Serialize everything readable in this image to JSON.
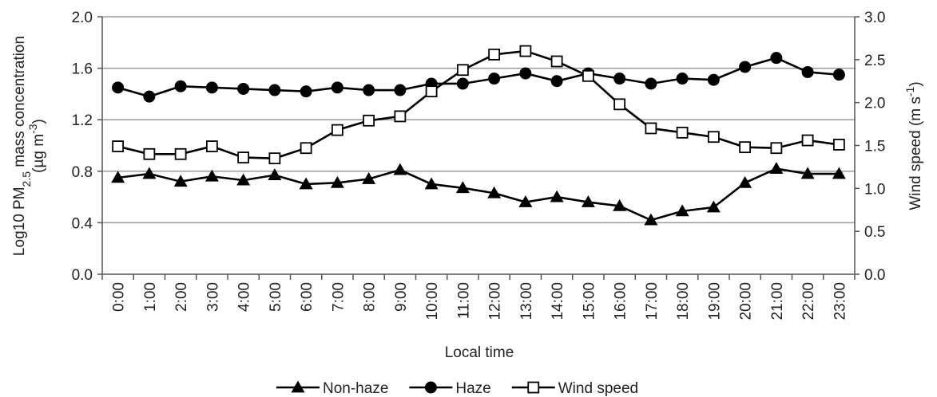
{
  "chart_data": {
    "type": "line",
    "x": [
      "0:00",
      "1:00",
      "2:00",
      "3:00",
      "4:00",
      "5:00",
      "6:00",
      "7:00",
      "8:00",
      "9:00",
      "10:00",
      "11:00",
      "12:00",
      "13:00",
      "14:00",
      "15:00",
      "16:00",
      "17:00",
      "18:00",
      "19:00",
      "20:00",
      "21:00",
      "22:00",
      "23:00"
    ],
    "xlabel": "Local time",
    "ylabel_left_prefix": "Log10 PM",
    "ylabel_left_sub": "2.5",
    "ylabel_left_suffix": " mass concentration",
    "ylabel_left_unit_prefix": "(µg m",
    "ylabel_left_unit_sup": "-3",
    "ylabel_left_unit_suffix": ")",
    "ylabel_right_prefix": "Wind speed (m s",
    "ylabel_right_sup": "-1",
    "ylabel_right_suffix": ")",
    "ylim_left": [
      0.0,
      2.0
    ],
    "yticks_left": [
      "0.0",
      "0.4",
      "0.8",
      "1.2",
      "1.6",
      "2.0"
    ],
    "ylim_right": [
      0.0,
      3.0
    ],
    "yticks_right": [
      "0.0",
      "0.5",
      "1.0",
      "1.5",
      "2.0",
      "2.5",
      "3.0"
    ],
    "grid": "horizontal",
    "legend_position": "bottom",
    "series": [
      {
        "name": "Non-haze",
        "axis": "left",
        "marker": "triangle",
        "values": [
          0.75,
          0.78,
          0.72,
          0.76,
          0.73,
          0.77,
          0.7,
          0.71,
          0.74,
          0.81,
          0.7,
          0.67,
          0.63,
          0.56,
          0.6,
          0.56,
          0.53,
          0.42,
          0.49,
          0.52,
          0.71,
          0.82,
          0.78,
          0.78
        ]
      },
      {
        "name": "Haze",
        "axis": "left",
        "marker": "circle",
        "values": [
          1.45,
          1.38,
          1.46,
          1.45,
          1.44,
          1.43,
          1.42,
          1.45,
          1.43,
          1.43,
          1.48,
          1.48,
          1.52,
          1.56,
          1.5,
          1.56,
          1.52,
          1.48,
          1.52,
          1.51,
          1.61,
          1.68,
          1.57,
          1.55
        ]
      },
      {
        "name": "Wind speed",
        "axis": "right",
        "marker": "square-open",
        "values": [
          1.49,
          1.4,
          1.4,
          1.49,
          1.36,
          1.35,
          1.47,
          1.68,
          1.79,
          1.84,
          2.13,
          2.38,
          2.56,
          2.6,
          2.48,
          2.31,
          1.98,
          1.7,
          1.65,
          1.6,
          1.48,
          1.47,
          1.56,
          1.51
        ]
      }
    ],
    "colors": {
      "line": "#000000",
      "grid": "#9a9a9a",
      "axis": "#555555"
    }
  }
}
